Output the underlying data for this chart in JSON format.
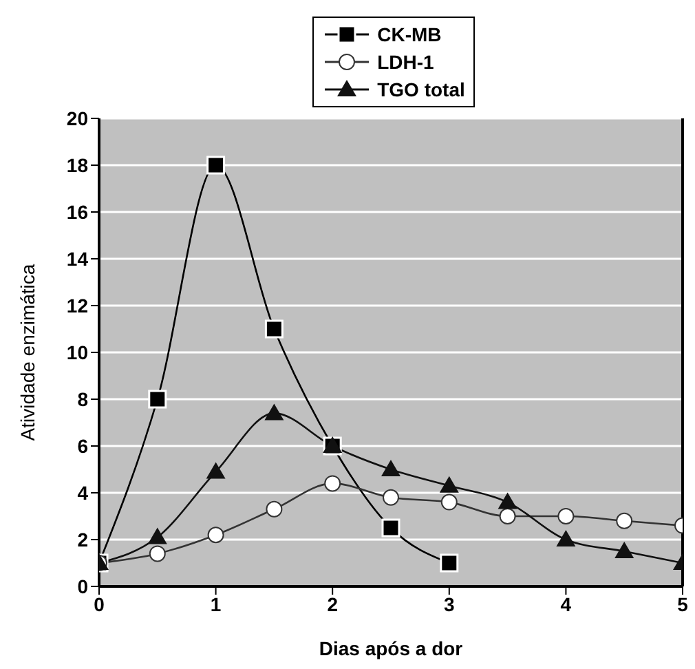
{
  "chart_data": {
    "type": "line",
    "xlabel": "Dias após a dor",
    "ylabel": "Atividade enzimática",
    "x": [
      0,
      0.5,
      1,
      1.5,
      2,
      2.5,
      3,
      3.5,
      4,
      4.5,
      5
    ],
    "series": [
      {
        "name": "CK-MB",
        "color": "#000000",
        "marker": "square",
        "values": [
          1,
          8,
          18,
          11,
          6,
          2.5,
          1,
          null,
          null,
          null,
          null
        ]
      },
      {
        "name": "LDH-1",
        "color": "#333333",
        "marker": "circle",
        "values": [
          1,
          1.4,
          2.2,
          3.3,
          4.4,
          3.8,
          3.6,
          3,
          3,
          2.8,
          2.6
        ]
      },
      {
        "name": "TGO total",
        "color": "#111111",
        "marker": "triangle",
        "values": [
          1,
          2.1,
          4.9,
          7.4,
          6,
          5,
          4.3,
          3.6,
          2,
          1.5,
          1
        ]
      }
    ],
    "xlim": [
      0,
      5
    ],
    "xticks": [
      0,
      1,
      2,
      3,
      4,
      5
    ],
    "ylim": [
      0,
      20
    ],
    "yticks": [
      0,
      2,
      4,
      6,
      8,
      10,
      12,
      14,
      16,
      18,
      20
    ],
    "grid": "y",
    "legend": "top",
    "line_style": "solid"
  }
}
